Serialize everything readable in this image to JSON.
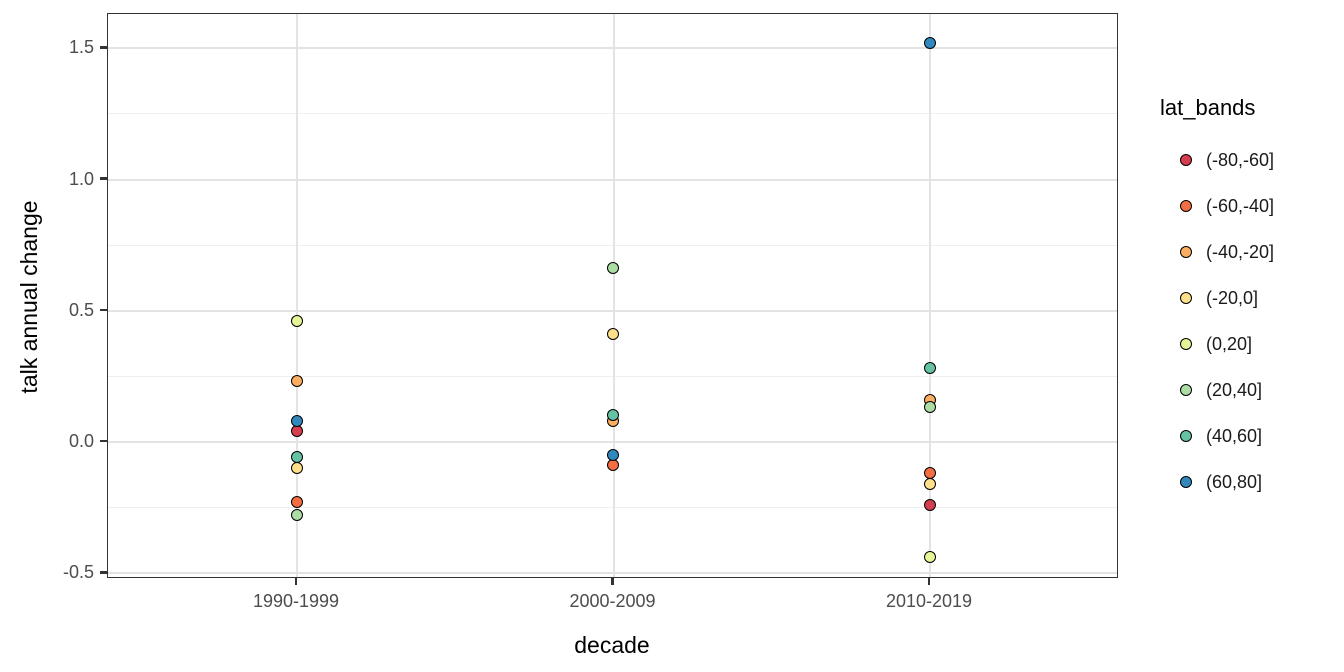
{
  "chart_data": {
    "type": "scatter",
    "title": "",
    "xlabel": "decade",
    "ylabel": "talk annual change",
    "categories": [
      "1990-1999",
      "2000-2009",
      "2010-2019"
    ],
    "y_ticks": [
      -0.5,
      0.0,
      0.5,
      1.0,
      1.5
    ],
    "y_tick_labels": [
      "-0.5",
      "0.0",
      "0.5",
      "1.0",
      "1.5"
    ],
    "y_minor_ticks": [
      -0.25,
      0.25,
      0.75,
      1.25
    ],
    "ylim": [
      -0.52,
      1.63
    ],
    "grid": true,
    "legend_position": "right",
    "legend_title": "lat_bands",
    "point_style": "filled-circle-black-outline",
    "series": [
      {
        "name": "(-80,-60]",
        "color": "#d53e4f",
        "values": [
          0.04,
          null,
          -0.24
        ]
      },
      {
        "name": "(-60,-40]",
        "color": "#f46d43",
        "values": [
          -0.23,
          -0.09,
          -0.12
        ]
      },
      {
        "name": "(-40,-20]",
        "color": "#fdae61",
        "values": [
          0.23,
          0.08,
          0.16
        ]
      },
      {
        "name": "(-20,0]",
        "color": "#fee08b",
        "values": [
          -0.1,
          0.41,
          -0.16
        ]
      },
      {
        "name": "(0,20]",
        "color": "#e6f598",
        "values": [
          0.46,
          null,
          -0.44
        ]
      },
      {
        "name": "(20,40]",
        "color": "#abdda4",
        "values": [
          -0.28,
          0.66,
          0.13
        ]
      },
      {
        "name": "(40,60]",
        "color": "#66c2a5",
        "values": [
          -0.06,
          0.1,
          0.28
        ]
      },
      {
        "name": "(60,80]",
        "color": "#3288bd",
        "values": [
          0.08,
          -0.05,
          1.52
        ]
      }
    ],
    "style_colors": {
      "panel_border": "#333333",
      "grid_major": "#e3e3e3",
      "grid_minor": "#efefef",
      "tick_label": "#4d4d4d",
      "axis_title": "#000000",
      "background": "#ffffff"
    }
  }
}
